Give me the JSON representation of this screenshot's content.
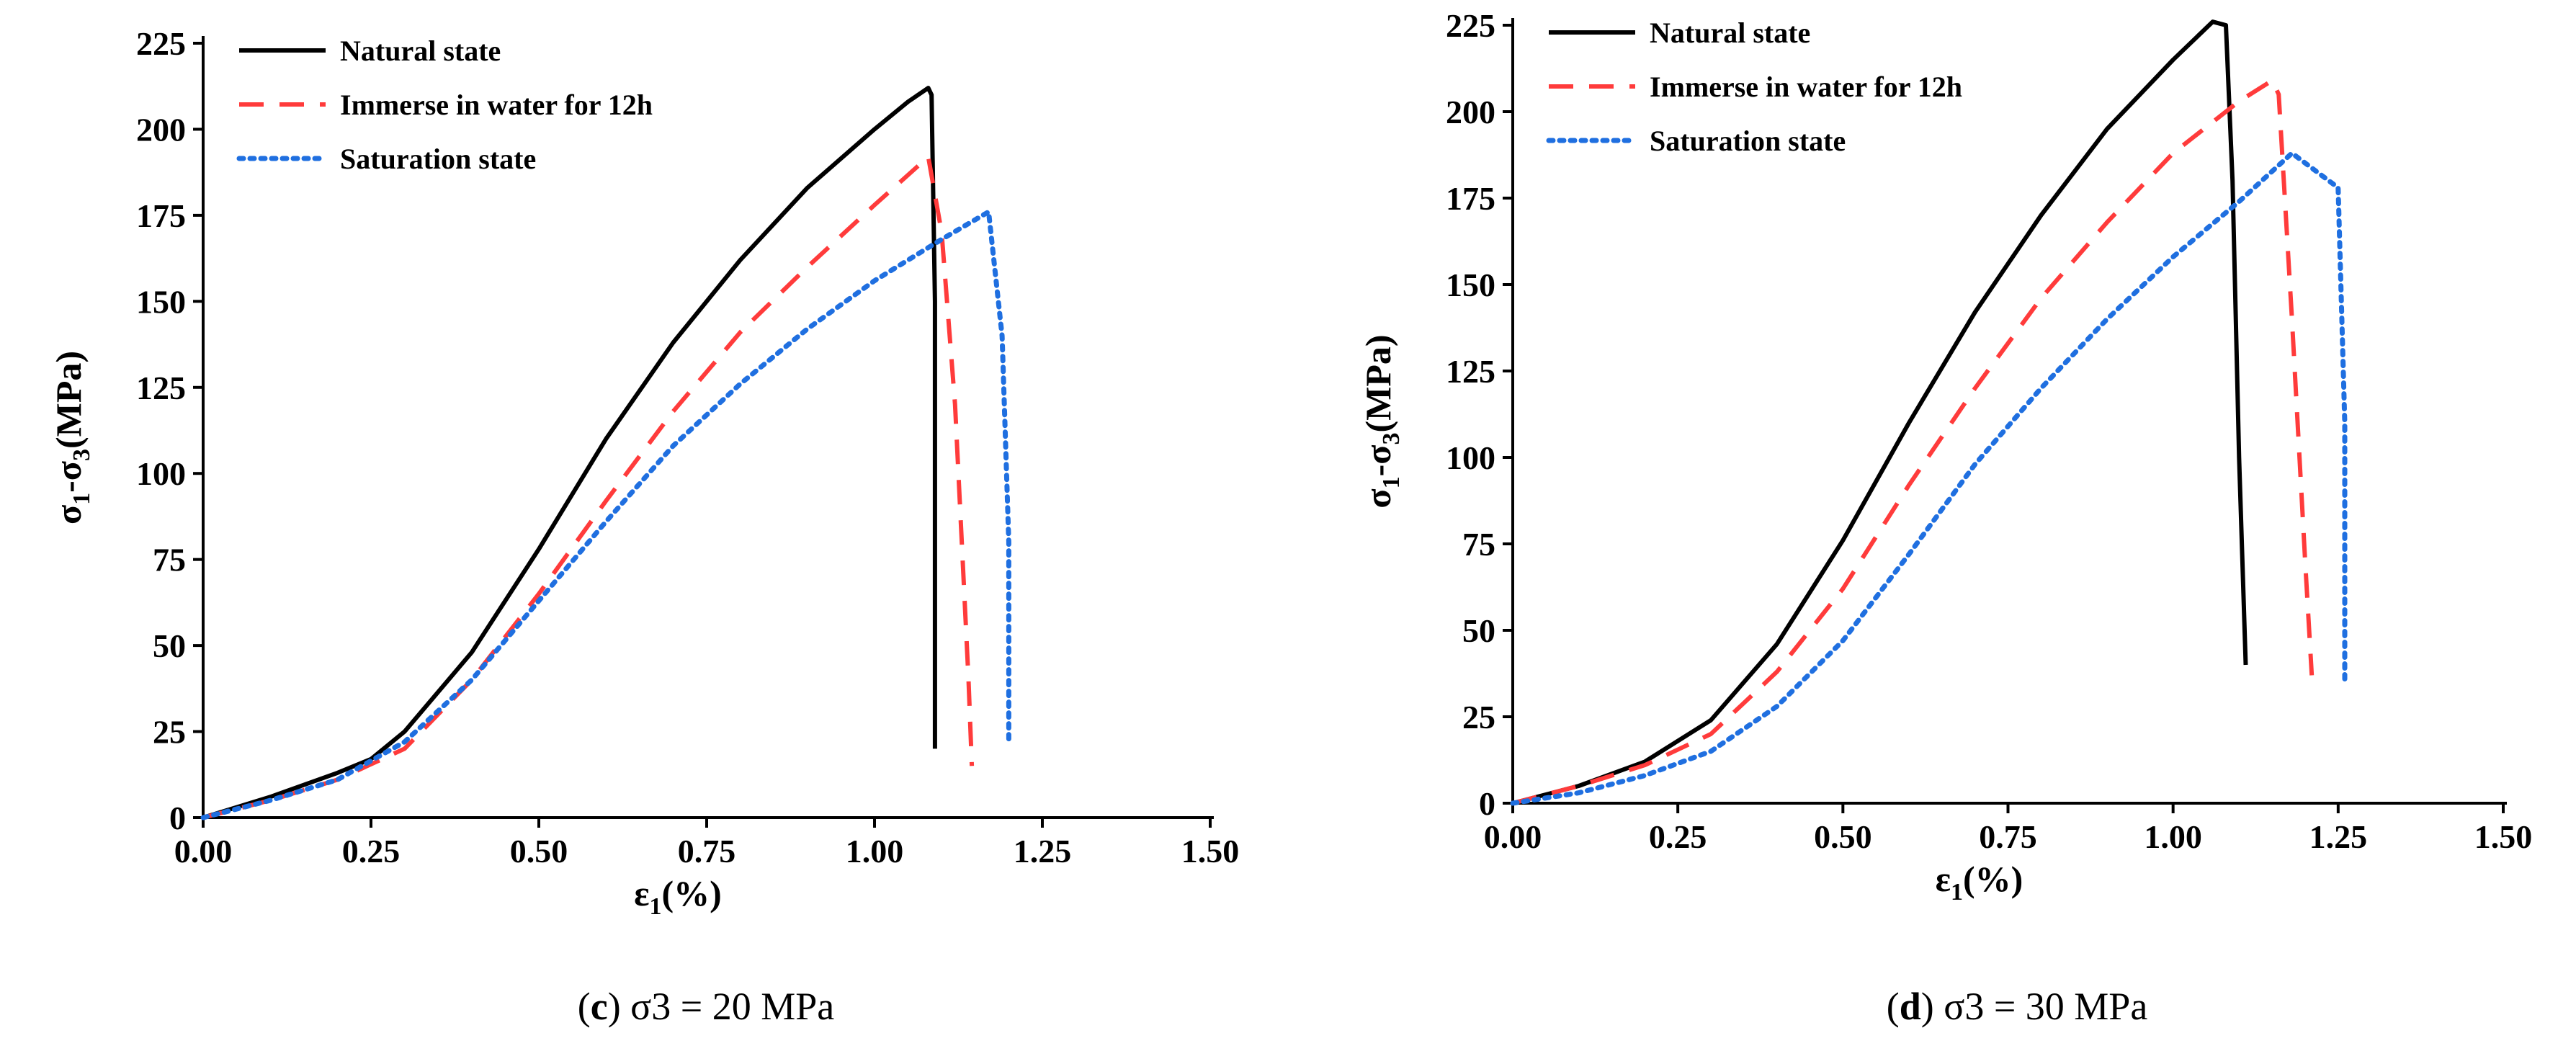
{
  "chart_data": [
    {
      "type": "line",
      "panel_letter": "c",
      "caption_rest": "σ3 = 20 MPa",
      "caption_open": "(",
      "caption_close": ")",
      "title": "",
      "xlabel_main": "ε",
      "xlabel_sub": "1",
      "xlabel_tail": "(%)",
      "ylabel_parts": [
        "σ",
        "1",
        "-σ",
        "3",
        "(MPa)"
      ],
      "xlim": [
        0,
        1.5
      ],
      "ylim": [
        0,
        225
      ],
      "xticks": [
        "0.00",
        "0.25",
        "0.50",
        "0.75",
        "1.00",
        "1.25",
        "1.50"
      ],
      "yticks": [
        "0",
        "25",
        "50",
        "75",
        "100",
        "125",
        "150",
        "175",
        "200",
        "225"
      ],
      "legend_position": "top-left",
      "series": [
        {
          "name": "Natural state",
          "color": "#000000",
          "style": "solid",
          "x": [
            0,
            0.1,
            0.2,
            0.25,
            0.3,
            0.4,
            0.5,
            0.6,
            0.7,
            0.8,
            0.9,
            1.0,
            1.05,
            1.08,
            1.085,
            1.09,
            1.09
          ],
          "y": [
            0,
            6,
            13,
            17,
            25,
            48,
            78,
            110,
            138,
            162,
            183,
            200,
            208,
            212,
            210,
            150,
            20
          ]
        },
        {
          "name": "Immerse in water for 12h",
          "color": "#ff3b3b",
          "style": "dashed",
          "x": [
            0,
            0.1,
            0.2,
            0.3,
            0.4,
            0.5,
            0.6,
            0.7,
            0.8,
            0.9,
            1.0,
            1.08,
            1.1,
            1.12,
            1.14,
            1.145
          ],
          "y": [
            0,
            5,
            11,
            20,
            40,
            65,
            92,
            118,
            141,
            160,
            178,
            192,
            170,
            120,
            40,
            15
          ]
        },
        {
          "name": "Saturation state",
          "color": "#1f6fe0",
          "style": "dotted",
          "x": [
            0,
            0.1,
            0.2,
            0.3,
            0.4,
            0.5,
            0.6,
            0.7,
            0.8,
            0.9,
            1.0,
            1.1,
            1.17,
            1.19,
            1.2,
            1.2
          ],
          "y": [
            0,
            5,
            11,
            22,
            40,
            63,
            86,
            108,
            126,
            142,
            156,
            168,
            176,
            140,
            80,
            22
          ]
        }
      ]
    },
    {
      "type": "line",
      "panel_letter": "d",
      "caption_rest": "σ3 = 30 MPa",
      "caption_open": "(",
      "caption_close": ")",
      "title": "",
      "xlabel_main": "ε",
      "xlabel_sub": "1",
      "xlabel_tail": "(%)",
      "ylabel_parts": [
        "σ",
        "1",
        "-σ",
        "3",
        "(MPa)"
      ],
      "xlim": [
        0,
        1.5
      ],
      "ylim": [
        0,
        225
      ],
      "xticks": [
        "0.00",
        "0.25",
        "0.50",
        "0.75",
        "1.00",
        "1.25",
        "1.50"
      ],
      "yticks": [
        "0",
        "25",
        "50",
        "75",
        "100",
        "125",
        "150",
        "175",
        "200",
        "225"
      ],
      "legend_position": "top-left",
      "series": [
        {
          "name": "Natural state",
          "color": "#000000",
          "style": "solid",
          "x": [
            0,
            0.1,
            0.2,
            0.3,
            0.4,
            0.5,
            0.6,
            0.7,
            0.8,
            0.9,
            1.0,
            1.06,
            1.08,
            1.09,
            1.1,
            1.11
          ],
          "y": [
            0,
            5,
            12,
            24,
            46,
            76,
            110,
            142,
            170,
            195,
            215,
            226,
            225,
            180,
            100,
            40
          ]
        },
        {
          "name": "Immerse in water for 12h",
          "color": "#ff3b3b",
          "style": "dashed",
          "x": [
            0,
            0.1,
            0.2,
            0.3,
            0.4,
            0.5,
            0.6,
            0.7,
            0.8,
            0.9,
            1.0,
            1.1,
            1.15,
            1.16,
            1.18,
            1.2,
            1.21
          ],
          "y": [
            0,
            5,
            11,
            20,
            38,
            62,
            92,
            120,
            146,
            168,
            188,
            203,
            209,
            205,
            140,
            70,
            37
          ]
        },
        {
          "name": "Saturation state",
          "color": "#1f6fe0",
          "style": "dotted",
          "x": [
            0,
            0.1,
            0.2,
            0.3,
            0.4,
            0.5,
            0.6,
            0.7,
            0.8,
            0.9,
            1.0,
            1.1,
            1.18,
            1.25,
            1.26,
            1.26
          ],
          "y": [
            0,
            3,
            8,
            15,
            28,
            47,
            72,
            98,
            120,
            140,
            158,
            174,
            188,
            178,
            110,
            35
          ]
        }
      ]
    }
  ]
}
